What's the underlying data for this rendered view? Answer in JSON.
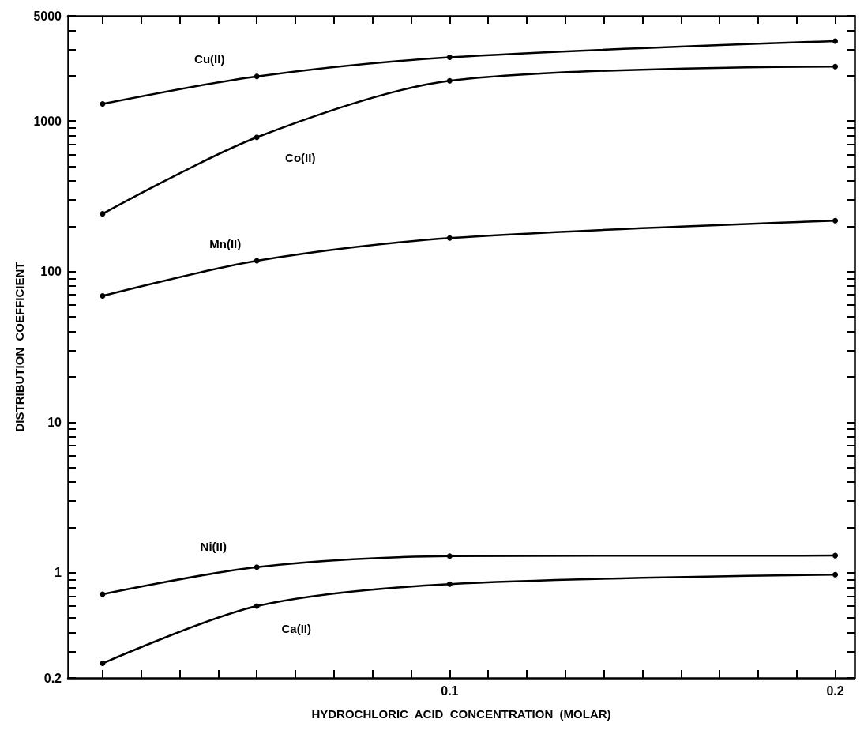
{
  "chart_data": {
    "type": "line",
    "xlabel": "HYDROCHLORIC  ACID  CONCENTRATION  (MOLAR)",
    "ylabel": "DISTRIBUTION  COEFFICIENT",
    "x": [
      0.01,
      0.05,
      0.1,
      0.2
    ],
    "series": [
      {
        "name": "Cu(II)",
        "color": "#000000",
        "values": [
          1300,
          1980,
          2650,
          3400
        ]
      },
      {
        "name": "Co(II)",
        "color": "#000000",
        "values": [
          242,
          780,
          1850,
          2300
        ]
      },
      {
        "name": "Mn(II)",
        "color": "#000000",
        "values": [
          69,
          118,
          167,
          218
        ]
      },
      {
        "name": "Ni(II)",
        "color": "#000000",
        "values": [
          0.72,
          1.09,
          1.29,
          1.3
        ]
      },
      {
        "name": "Ca(II)",
        "color": "#000000",
        "values": [
          0.25,
          0.6,
          0.84,
          0.97
        ]
      }
    ],
    "log": "y",
    "xlim": [
      0.001,
      0.205
    ],
    "xticks": [
      {
        "value": 0.01,
        "label": null
      },
      {
        "value": 0.02,
        "label": null
      },
      {
        "value": 0.03,
        "label": null
      },
      {
        "value": 0.04,
        "label": null
      },
      {
        "value": 0.05,
        "label": null
      },
      {
        "value": 0.06,
        "label": null
      },
      {
        "value": 0.07,
        "label": null
      },
      {
        "value": 0.08,
        "label": null
      },
      {
        "value": 0.09,
        "label": null
      },
      {
        "value": 0.1,
        "label": "0.1"
      },
      {
        "value": 0.11,
        "label": null
      },
      {
        "value": 0.12,
        "label": null
      },
      {
        "value": 0.13,
        "label": null
      },
      {
        "value": 0.14,
        "label": null
      },
      {
        "value": 0.15,
        "label": null
      },
      {
        "value": 0.16,
        "label": null
      },
      {
        "value": 0.17,
        "label": null
      },
      {
        "value": 0.18,
        "label": null
      },
      {
        "value": 0.19,
        "label": null
      },
      {
        "value": 0.2,
        "label": "0.2"
      }
    ],
    "ylim": [
      0.2,
      5000
    ],
    "yticks": [
      0.2,
      {
        "value": 0.3,
        "label": null
      },
      {
        "value": 0.4,
        "label": null
      },
      {
        "value": 0.5,
        "label": null
      },
      {
        "value": 0.6,
        "label": null
      },
      {
        "value": 0.7,
        "label": null
      },
      {
        "value": 0.8,
        "label": null
      },
      {
        "value": 0.9,
        "label": null
      },
      1,
      {
        "value": 2,
        "label": null
      },
      {
        "value": 3,
        "label": null
      },
      {
        "value": 4,
        "label": null
      },
      {
        "value": 5,
        "label": null
      },
      {
        "value": 6,
        "label": null
      },
      {
        "value": 7,
        "label": null
      },
      {
        "value": 8,
        "label": null
      },
      {
        "value": 9,
        "label": null
      },
      10,
      {
        "value": 20,
        "label": null
      },
      {
        "value": 30,
        "label": null
      },
      {
        "value": 40,
        "label": null
      },
      {
        "value": 50,
        "label": null
      },
      {
        "value": 60,
        "label": null
      },
      {
        "value": 70,
        "label": null
      },
      {
        "value": 80,
        "label": null
      },
      {
        "value": 90,
        "label": null
      },
      100,
      {
        "value": 200,
        "label": null
      },
      {
        "value": 300,
        "label": null
      },
      {
        "value": 400,
        "label": null
      },
      {
        "value": 500,
        "label": null
      },
      {
        "value": 600,
        "label": null
      },
      {
        "value": 700,
        "label": null
      },
      {
        "value": 800,
        "label": null
      },
      {
        "value": 900,
        "label": null
      },
      1000,
      {
        "value": 2000,
        "label": null
      },
      {
        "value": 3000,
        "label": null
      },
      {
        "value": 4000,
        "label": null
      },
      5000
    ],
    "grid": false,
    "legend": false,
    "marker": "circle",
    "line_style": "solid"
  }
}
